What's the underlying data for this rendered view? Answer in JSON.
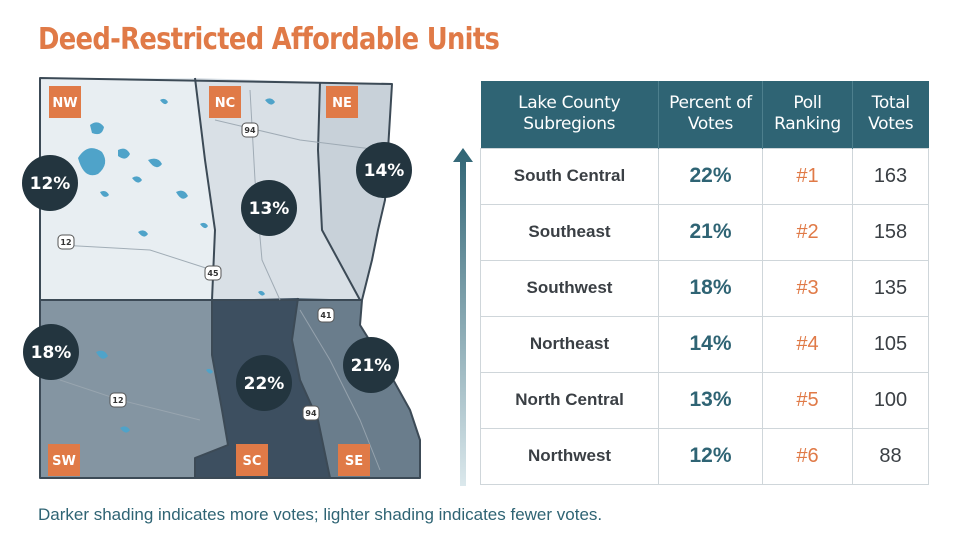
{
  "title": "Deed-Restricted Affordable Units",
  "map": {
    "regions": [
      {
        "code": "NW",
        "percent": "12%",
        "color": "#e8eef2"
      },
      {
        "code": "NC",
        "percent": "13%",
        "color": "#d9e0e6"
      },
      {
        "code": "NE",
        "percent": "14%",
        "color": "#c8d1d9"
      },
      {
        "code": "SW",
        "percent": "18%",
        "color": "#8495a2"
      },
      {
        "code": "SE",
        "percent": "21%",
        "color": "#6a7d8c"
      },
      {
        "code": "SC",
        "percent": "22%",
        "color": "#3d4f60"
      }
    ],
    "route_shields": [
      "94",
      "12",
      "45",
      "41",
      "12",
      "94"
    ],
    "water_color": "#4fa3c9",
    "badge_color": "#e07a47",
    "bubble_color": "#23353f"
  },
  "table": {
    "headers": [
      "Lake County Subregions",
      "Percent of Votes",
      "Poll Ranking",
      "Total Votes"
    ],
    "rows": [
      {
        "region": "South Central",
        "percent": "22%",
        "rank": "#1",
        "votes": "163"
      },
      {
        "region": "Southeast",
        "percent": "21%",
        "rank": "#2",
        "votes": "158"
      },
      {
        "region": "Southwest",
        "percent": "18%",
        "rank": "#3",
        "votes": "135"
      },
      {
        "region": "Northeast",
        "percent": "14%",
        "rank": "#4",
        "votes": "105"
      },
      {
        "region": "North Central",
        "percent": "13%",
        "rank": "#5",
        "votes": "100"
      },
      {
        "region": "Northwest",
        "percent": "12%",
        "rank": "#6",
        "votes": "88"
      }
    ]
  },
  "footnote": "Darker shading indicates more votes; lighter shading indicates fewer votes."
}
